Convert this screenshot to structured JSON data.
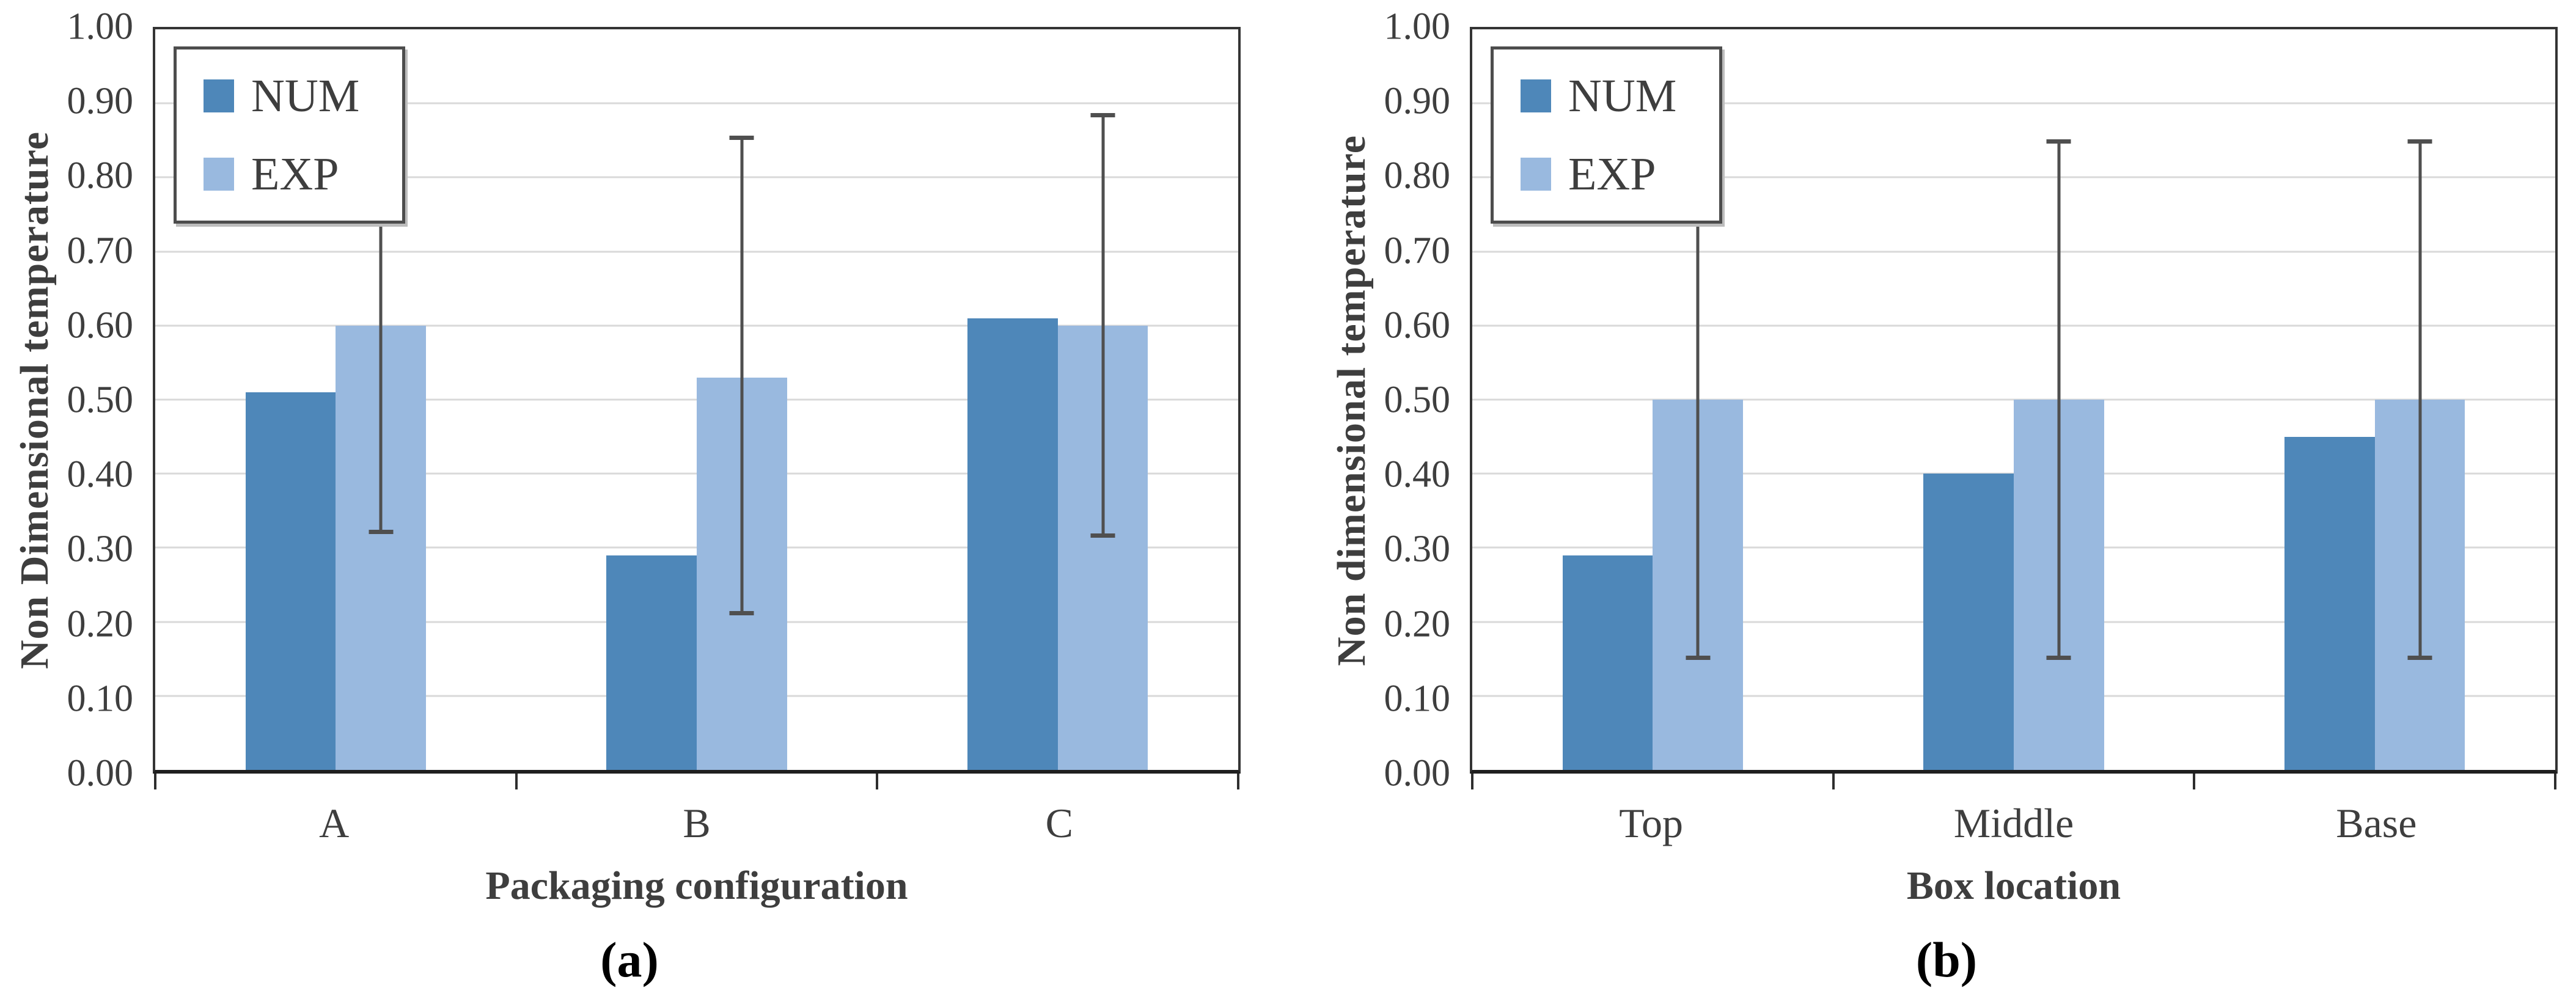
{
  "colors": {
    "num_series": "#4e87b9",
    "exp_series": "#99b9df",
    "gridline": "#d9d9d9",
    "axis_line": "#343434",
    "error_bar": "#4f4f4f",
    "text": "#3e3e3e"
  },
  "chart_data": [
    {
      "id": "a",
      "type": "bar",
      "caption": "(a)",
      "xlabel": "Packaging configuration",
      "ylabel": "Non Dimensional temperature",
      "categories": [
        "A",
        "B",
        "C"
      ],
      "series": [
        {
          "name": "NUM",
          "values": [
            0.51,
            0.29,
            0.61
          ]
        },
        {
          "name": "EXP",
          "values": [
            0.6,
            0.53,
            0.6
          ]
        }
      ],
      "error_bars": {
        "on_series": "EXP",
        "low": [
          0.32,
          0.21,
          0.315
        ],
        "high": [
          0.88,
          0.855,
          0.885
        ]
      },
      "ylim": [
        0,
        1
      ],
      "ytick_step": 0.1,
      "ytick_labels": [
        "0.00",
        "0.10",
        "0.20",
        "0.30",
        "0.40",
        "0.50",
        "0.60",
        "0.70",
        "0.80",
        "0.90",
        "1.00"
      ],
      "legend_position": "top-left",
      "grid": true
    },
    {
      "id": "b",
      "type": "bar",
      "caption": "(b)",
      "xlabel": "Box location",
      "ylabel": "Non dimensional temperature",
      "categories": [
        "Top",
        "Middle",
        "Base"
      ],
      "series": [
        {
          "name": "NUM",
          "values": [
            0.29,
            0.4,
            0.45
          ]
        },
        {
          "name": "EXP",
          "values": [
            0.5,
            0.5,
            0.5
          ]
        }
      ],
      "error_bars": {
        "on_series": "EXP",
        "low": [
          0.15,
          0.15,
          0.15
        ],
        "high": [
          0.85,
          0.85,
          0.85
        ]
      },
      "ylim": [
        0,
        1
      ],
      "ytick_step": 0.1,
      "ytick_labels": [
        "0.00",
        "0.10",
        "0.20",
        "0.30",
        "0.40",
        "0.50",
        "0.60",
        "0.70",
        "0.80",
        "0.90",
        "1.00"
      ],
      "legend_position": "top-left",
      "grid": true
    }
  ]
}
